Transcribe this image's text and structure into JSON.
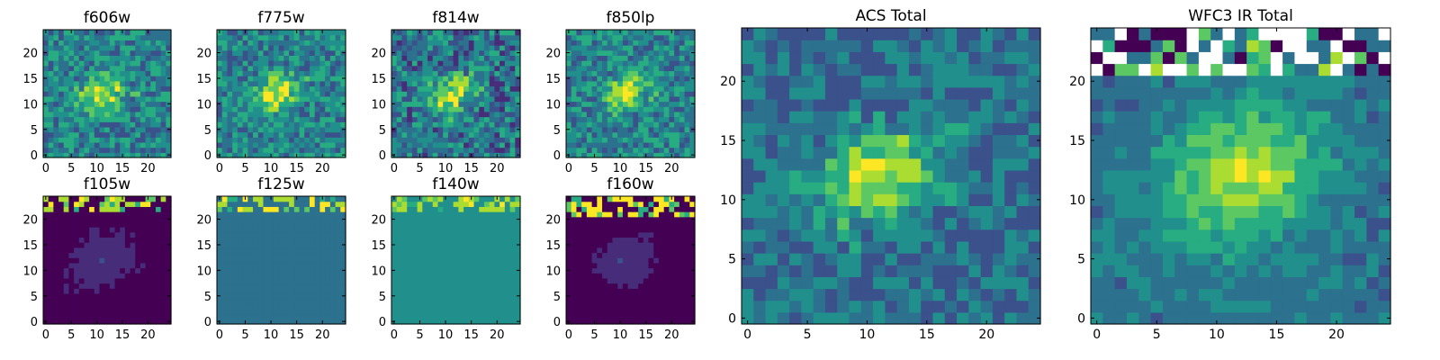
{
  "figure": {
    "background": "#ffffff"
  },
  "colormap": [
    "#440154",
    "#472c7a",
    "#3b518b",
    "#2c718e",
    "#21908d",
    "#27ad81",
    "#5cc863",
    "#aadc32",
    "#fde725"
  ],
  "chart_data": [
    {
      "type": "heatmap",
      "title": "f606w",
      "grid": [
        25,
        25
      ],
      "x_ticks": [
        "0",
        "5",
        "10",
        "15",
        "20"
      ],
      "y_ticks": [
        "0",
        "5",
        "10",
        "15",
        "20"
      ],
      "xlim": [
        0,
        24
      ],
      "ylim": [
        0,
        24
      ],
      "style": "noisy",
      "center": [
        11,
        12
      ],
      "peak": 0.95,
      "sigma": [
        3.2,
        2.2
      ],
      "base": 0.45,
      "noise": 0.22,
      "border_level": 0.5
    },
    {
      "type": "heatmap",
      "title": "f775w",
      "grid": [
        25,
        25
      ],
      "x_ticks": [
        "0",
        "5",
        "10",
        "15",
        "20"
      ],
      "y_ticks": [
        "0",
        "5",
        "10",
        "15",
        "20"
      ],
      "xlim": [
        0,
        24
      ],
      "ylim": [
        0,
        24
      ],
      "style": "noisy",
      "center": [
        11,
        12
      ],
      "peak": 0.95,
      "sigma": [
        3.3,
        2.3
      ],
      "base": 0.45,
      "noise": 0.2,
      "border_level": 0.5
    },
    {
      "type": "heatmap",
      "title": "f814w",
      "grid": [
        25,
        25
      ],
      "x_ticks": [
        "0",
        "5",
        "10",
        "15",
        "20"
      ],
      "y_ticks": [
        "0",
        "5",
        "10",
        "15",
        "20"
      ],
      "xlim": [
        0,
        24
      ],
      "ylim": [
        0,
        24
      ],
      "style": "noisy",
      "center": [
        11,
        12
      ],
      "peak": 0.98,
      "sigma": [
        3.3,
        2.3
      ],
      "base": 0.38,
      "noise": 0.25,
      "border_level": 0.45
    },
    {
      "type": "heatmap",
      "title": "f850lp",
      "grid": [
        25,
        25
      ],
      "x_ticks": [
        "0",
        "5",
        "10",
        "15",
        "20"
      ],
      "y_ticks": [
        "0",
        "5",
        "10",
        "15",
        "20"
      ],
      "xlim": [
        0,
        24
      ],
      "ylim": [
        0,
        24
      ],
      "style": "noisy",
      "center": [
        11,
        12
      ],
      "peak": 0.9,
      "sigma": [
        3.2,
        2.2
      ],
      "base": 0.45,
      "noise": 0.22,
      "border_level": 0.5
    },
    {
      "type": "heatmap",
      "title": "f105w",
      "grid": [
        25,
        25
      ],
      "x_ticks": [
        "0",
        "5",
        "10",
        "15",
        "20"
      ],
      "y_ticks": [
        "0",
        "5",
        "10",
        "15",
        "20"
      ],
      "xlim": [
        0,
        24
      ],
      "ylim": [
        0,
        24
      ],
      "style": "flat",
      "center": [
        11,
        12
      ],
      "peak": 0.18,
      "sigma": [
        3.5,
        2.5
      ],
      "base": 0.04,
      "noise": 0.02,
      "border_level": 0.04,
      "top_rows": 3,
      "top_high": 0.85
    },
    {
      "type": "heatmap",
      "title": "f125w",
      "grid": [
        25,
        25
      ],
      "x_ticks": [
        "0",
        "5",
        "10",
        "15",
        "20"
      ],
      "y_ticks": [
        "0",
        "5",
        "10",
        "15",
        "20"
      ],
      "xlim": [
        0,
        24
      ],
      "ylim": [
        0,
        24
      ],
      "style": "flat",
      "center": [
        11,
        12
      ],
      "peak": 0.4,
      "sigma": [
        3.5,
        2.5
      ],
      "base": 0.37,
      "noise": 0.01,
      "border_level": 0.37,
      "top_rows": 3,
      "top_high": 0.9
    },
    {
      "type": "heatmap",
      "title": "f140w",
      "grid": [
        25,
        25
      ],
      "x_ticks": [
        "0",
        "5",
        "10",
        "15",
        "20"
      ],
      "y_ticks": [
        "0",
        "5",
        "10",
        "15",
        "20"
      ],
      "xlim": [
        0,
        24
      ],
      "ylim": [
        0,
        24
      ],
      "style": "flat",
      "center": [
        11,
        12
      ],
      "peak": 0.52,
      "sigma": [
        3.5,
        2.5
      ],
      "base": 0.5,
      "noise": 0.01,
      "border_level": 0.5,
      "top_rows": 3,
      "top_high": 0.85
    },
    {
      "type": "heatmap",
      "title": "f160w",
      "grid": [
        25,
        25
      ],
      "x_ticks": [
        "0",
        "5",
        "10",
        "15",
        "20"
      ],
      "y_ticks": [
        "0",
        "5",
        "10",
        "15",
        "20"
      ],
      "xlim": [
        0,
        24
      ],
      "ylim": [
        0,
        24
      ],
      "style": "flat",
      "center": [
        11,
        12
      ],
      "peak": 0.18,
      "sigma": [
        3.5,
        2.5
      ],
      "base": 0.03,
      "noise": 0.02,
      "border_level": 0.03,
      "top_rows": 4,
      "top_high": 0.95
    },
    {
      "type": "heatmap",
      "title": "ACS Total",
      "grid": [
        25,
        25
      ],
      "x_ticks": [
        "0",
        "5",
        "10",
        "15",
        "20"
      ],
      "y_ticks": [
        "0",
        "5",
        "10",
        "15",
        "20"
      ],
      "xlim": [
        0,
        24
      ],
      "ylim": [
        0,
        24
      ],
      "style": "noisy",
      "center": [
        11,
        12
      ],
      "peak": 0.95,
      "sigma": [
        3.4,
        2.4
      ],
      "base": 0.38,
      "noise": 0.18,
      "border_level": 0.4
    },
    {
      "type": "heatmap",
      "title": "WFC3 IR Total",
      "grid": [
        25,
        25
      ],
      "x_ticks": [
        "0",
        "5",
        "10",
        "15",
        "20"
      ],
      "y_ticks": [
        "0",
        "5",
        "10",
        "15",
        "20"
      ],
      "xlim": [
        0,
        24
      ],
      "ylim": [
        0,
        24
      ],
      "style": "smooth",
      "center": [
        12,
        12
      ],
      "peak": 0.9,
      "sigma": [
        4.8,
        3.8
      ],
      "base": 0.38,
      "noise": 0.1,
      "border_level": 0.4,
      "top_rows": 4,
      "top_mixed": true
    }
  ]
}
